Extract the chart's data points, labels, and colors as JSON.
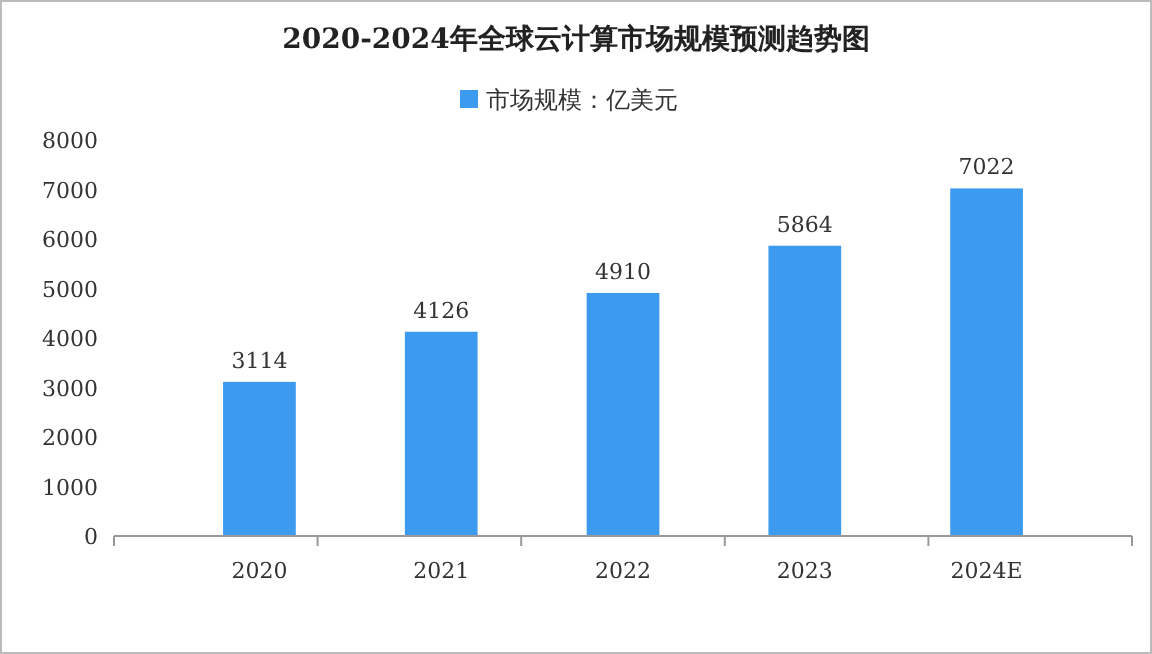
{
  "chart_data": {
    "type": "bar",
    "title": "2020-2024年全球云计算市场规模预测趋势图",
    "categories": [
      "2020",
      "2021",
      "2022",
      "2023",
      "2024E"
    ],
    "series": [
      {
        "name": "市场规模：亿美元",
        "color": "#3d9bef",
        "values": [
          3114,
          4126,
          4910,
          5864,
          7022
        ]
      }
    ],
    "ylim": [
      0,
      8000
    ],
    "yticks": [
      0,
      1000,
      2000,
      3000,
      4000,
      5000,
      6000,
      7000,
      8000
    ],
    "grid": false,
    "legend": "top",
    "data_labels": true
  }
}
